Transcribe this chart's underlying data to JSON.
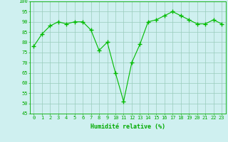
{
  "x": [
    0,
    1,
    2,
    3,
    4,
    5,
    6,
    7,
    8,
    9,
    10,
    11,
    12,
    13,
    14,
    15,
    16,
    17,
    18,
    19,
    20,
    21,
    22,
    23
  ],
  "y": [
    78,
    84,
    88,
    90,
    89,
    90,
    90,
    86,
    76,
    80,
    65,
    51,
    70,
    79,
    90,
    91,
    93,
    95,
    93,
    91,
    89,
    89,
    91,
    89
  ],
  "line_color": "#00bb00",
  "marker": "+",
  "marker_size": 4,
  "marker_lw": 1.0,
  "bg_color": "#cff0f0",
  "grid_color": "#99ccbb",
  "xlabel": "Humidité relative (%)",
  "xlabel_color": "#00aa00",
  "ylim": [
    45,
    100
  ],
  "yticks": [
    45,
    50,
    55,
    60,
    65,
    70,
    75,
    80,
    85,
    90,
    95,
    100
  ],
  "xticks": [
    0,
    1,
    2,
    3,
    4,
    5,
    6,
    7,
    8,
    9,
    10,
    11,
    12,
    13,
    14,
    15,
    16,
    17,
    18,
    19,
    20,
    21,
    22,
    23
  ],
  "tick_color": "#00aa00",
  "axis_color": "#00aa00",
  "tick_fontsize": 5.0,
  "xlabel_fontsize": 6.0
}
